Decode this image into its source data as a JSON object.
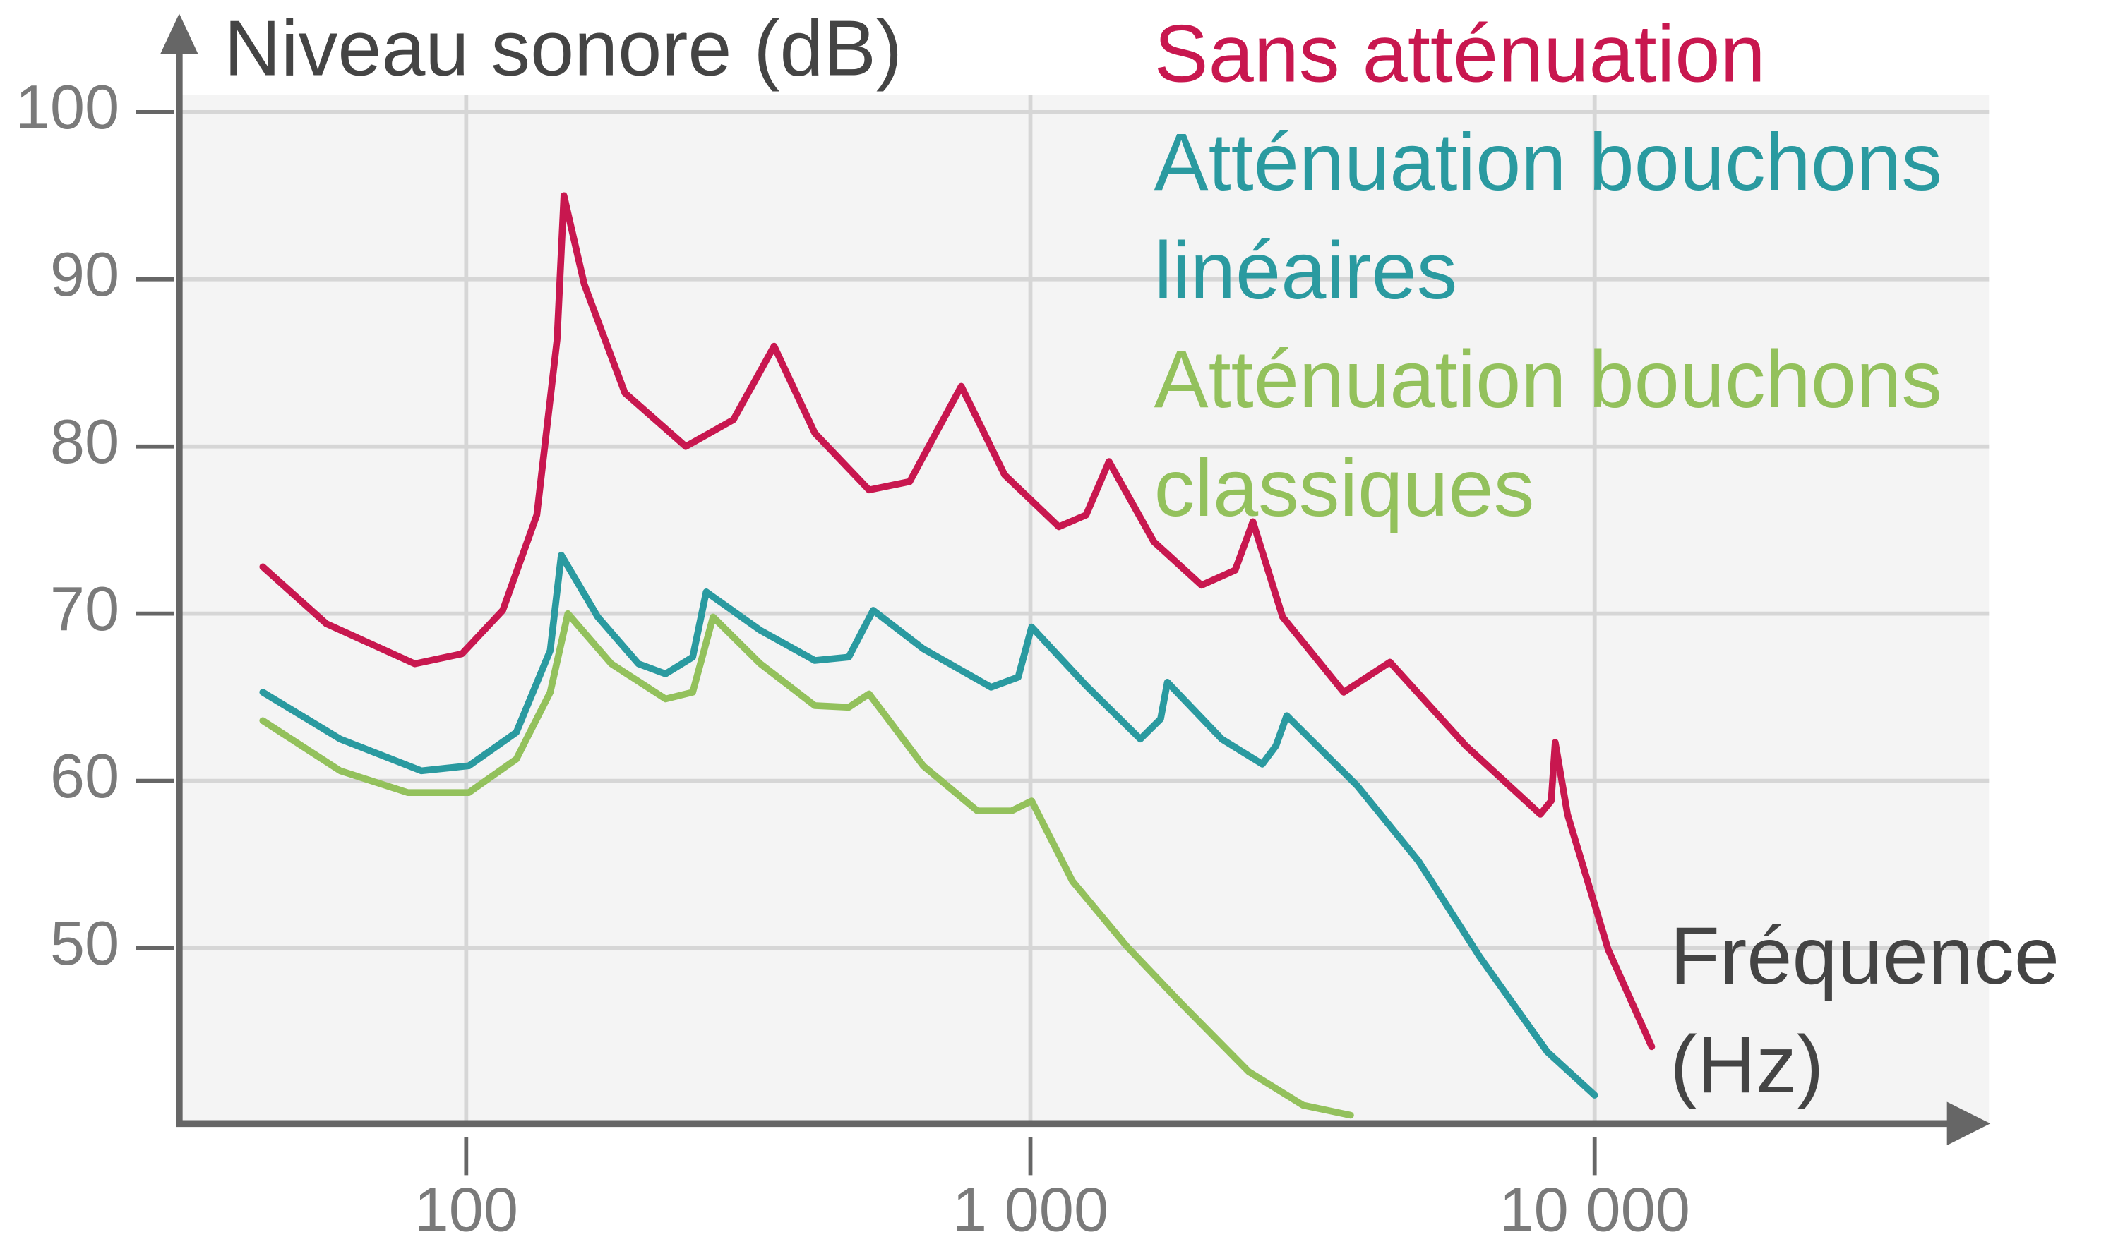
{
  "chart_data": {
    "type": "line",
    "title": "Niveau sonore (dB)",
    "x_label": "Fréquence (Hz)",
    "xscale": "log",
    "xlim": [
      31,
      50000
    ],
    "xticks": [
      100,
      {
        "value": 1000,
        "label": "1 000"
      },
      {
        "value": 10000,
        "label": "10 000"
      }
    ],
    "ylim": [
      39.5,
      105
    ],
    "yticks": [
      50,
      60,
      70,
      80,
      90,
      100
    ],
    "grid": true,
    "legend": "top-right",
    "series": [
      {
        "name": "Sans atténuation",
        "color": "#c8174f",
        "x": [
          43.6,
          56.5,
          81.1,
          98.3,
          116.1,
          133.4,
          144.9,
          149.0,
          161.9,
          191.1,
          245.0,
          297.6,
          351.3,
          414.8,
          517.6,
          611,
          754,
          900,
          1123,
          1255,
          1378,
          1655,
          2010,
          2306,
          2479,
          2799,
          3591,
          4337,
          5911,
          8012,
          8375,
          8514,
          8951,
          10570,
          12620
        ],
        "values": [
          72.8,
          69.4,
          67.0,
          67.6,
          70.2,
          75.9,
          86.4,
          95.0,
          89.7,
          83.2,
          80.0,
          81.6,
          86.0,
          80.8,
          77.4,
          77.9,
          83.6,
          78.3,
          75.2,
          75.9,
          79.1,
          74.3,
          71.7,
          72.6,
          75.5,
          69.8,
          65.3,
          67.1,
          62.1,
          58.0,
          58.8,
          62.3,
          58.0,
          49.9,
          44.1
        ]
      },
      {
        "name": "Atténuation bouchons linéaires",
        "color": "#2a9aa0",
        "x": [
          43.6,
          59.8,
          83.3,
          101.1,
          122.7,
          140.9,
          147.4,
          171.1,
          202,
          225.6,
          252,
          266.3,
          332.2,
          414.8,
          476.4,
          526.3,
          645.7,
          851.7,
          951.3,
          1005,
          1255,
          1566,
          1701,
          1749,
          2183,
          2576,
          2724,
          2846,
          3796,
          4873,
          6249,
          8238,
          10000
        ],
        "values": [
          65.3,
          62.5,
          60.6,
          60.9,
          62.9,
          67.8,
          73.5,
          69.8,
          67.0,
          66.4,
          67.4,
          71.3,
          69.0,
          67.2,
          67.4,
          70.2,
          67.9,
          65.6,
          66.2,
          69.2,
          65.7,
          62.5,
          63.7,
          65.9,
          62.5,
          61.0,
          62.1,
          63.9,
          59.7,
          55.2,
          49.5,
          43.8,
          41.2
        ]
      },
      {
        "name": "Atténuation bouchons classiques",
        "color": "#93c15c",
        "x": [
          43.6,
          59.8,
          78.8,
          101.1,
          122.7,
          140.9,
          151.4,
          180.8,
          225.6,
          252,
          273.9,
          332.2,
          414.8,
          476.4,
          517.6,
          645.7,
          805.6,
          925.6,
          1005,
          1187,
          1482,
          1849,
          2438,
          3041,
          3693
        ],
        "values": [
          63.6,
          60.6,
          59.3,
          59.3,
          61.3,
          65.3,
          70.0,
          67.0,
          64.9,
          65.3,
          69.8,
          67.0,
          64.5,
          64.4,
          65.2,
          60.9,
          58.2,
          58.2,
          58.8,
          54.0,
          50.1,
          46.7,
          42.6,
          40.6,
          40.0
        ]
      }
    ]
  }
}
